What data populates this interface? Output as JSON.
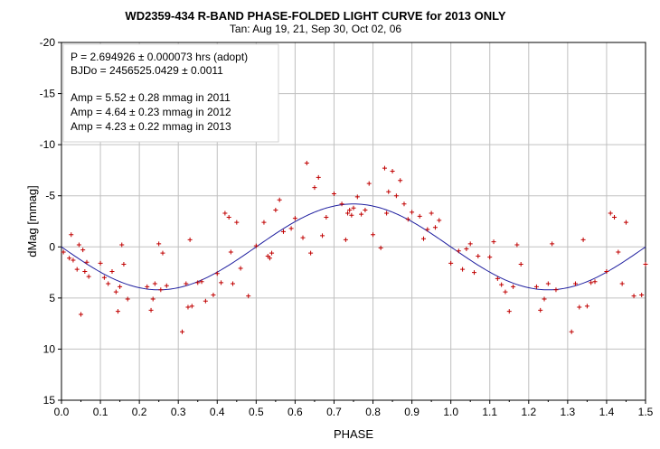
{
  "chart_data": {
    "type": "scatter",
    "title": "WD2359-434  R-BAND PHASE-FOLDED LIGHT CURVE for 2013 ONLY",
    "subtitle": "Tan: Aug 19, 21, Sep 30, Oct 02, 06",
    "xlabel": "PHASE",
    "ylabel": "dMag [mmag]",
    "xlim": [
      0.0,
      1.5
    ],
    "ylim": [
      15,
      -20
    ],
    "x_ticks": [
      "0.0",
      "0.1",
      "0.2",
      "0.3",
      "0.4",
      "0.5",
      "0.6",
      "0.7",
      "0.8",
      "0.9",
      "1.0",
      "1.1",
      "1.2",
      "1.3",
      "1.4",
      "1.5"
    ],
    "y_ticks": [
      "-20",
      "-15",
      "-10",
      "-5",
      "0",
      "5",
      "10",
      "15"
    ],
    "y_inverted": true,
    "grid": true,
    "annotations": [
      "P = 2.694926  ± 0.000073  hrs (adopt)",
      "BJDo = 2456525.0429  ± 0.0011",
      "",
      "Amp = 5.52 ± 0.28 mmag in 2011",
      "Amp = 4.64 ± 0.23 mmag in 2012",
      "Amp = 4.23 ± 0.22 mmag in 2013"
    ],
    "colors": {
      "points": "#c00000",
      "fit": "#2020a0",
      "grid": "#c0c0c0"
    },
    "fit": {
      "amplitude": 4.2,
      "max_phase": 0.75,
      "period_phase": 1.0
    },
    "series": [
      {
        "type": "points",
        "x": [
          0.005,
          0.02,
          0.025,
          0.03,
          0.04,
          0.045,
          0.05,
          0.055,
          0.06,
          0.065,
          0.07,
          0.1,
          0.11,
          0.12,
          0.13,
          0.14,
          0.145,
          0.15,
          0.155,
          0.16,
          0.17,
          0.22,
          0.23,
          0.235,
          0.24,
          0.25,
          0.255,
          0.26,
          0.27,
          0.31,
          0.32,
          0.325,
          0.33,
          0.335,
          0.35,
          0.36,
          0.37,
          0.39,
          0.4,
          0.41,
          0.42,
          0.43,
          0.435,
          0.44,
          0.45,
          0.46,
          0.48,
          0.5,
          0.52,
          0.53,
          0.535,
          0.54,
          0.55,
          0.56,
          0.57,
          0.59,
          0.6,
          0.62,
          0.63,
          0.64,
          0.65,
          0.66,
          0.67,
          0.68,
          0.7,
          0.72,
          0.73,
          0.735,
          0.74,
          0.745,
          0.75,
          0.76,
          0.77,
          0.78,
          0.79,
          0.8,
          0.82,
          0.83,
          0.835,
          0.84,
          0.85,
          0.86,
          0.87,
          0.88,
          0.89,
          0.9,
          0.92,
          0.93,
          0.94,
          0.95,
          0.96,
          0.97,
          1.0,
          1.02,
          1.03,
          1.04,
          1.05,
          1.06,
          1.07,
          1.1,
          1.11,
          1.12,
          1.13,
          1.14,
          1.15,
          1.16,
          1.17,
          1.18,
          1.22,
          1.23,
          1.24,
          1.25,
          1.26,
          1.27,
          1.31,
          1.32,
          1.33,
          1.34,
          1.35,
          1.36,
          1.37,
          1.4,
          1.41,
          1.42,
          1.43,
          1.44,
          1.45,
          1.47,
          1.49,
          1.5
        ],
        "y": [
          0.5,
          1.1,
          -1.2,
          1.3,
          2.2,
          -0.2,
          6.6,
          0.3,
          2.4,
          1.5,
          2.9,
          1.6,
          3.0,
          3.6,
          2.4,
          4.4,
          6.3,
          3.9,
          -0.2,
          1.7,
          5.1,
          3.9,
          6.2,
          5.1,
          3.6,
          -0.3,
          4.2,
          0.6,
          3.8,
          8.3,
          3.6,
          5.9,
          -0.7,
          5.8,
          3.5,
          3.4,
          5.3,
          4.7,
          2.6,
          3.5,
          -3.3,
          -2.9,
          0.5,
          3.6,
          -2.4,
          2.1,
          4.8,
          -0.1,
          -2.4,
          0.9,
          1.1,
          0.6,
          -3.6,
          -4.6,
          -1.5,
          -1.8,
          -2.8,
          -0.9,
          -8.2,
          0.6,
          -5.8,
          -6.8,
          -1.1,
          -2.9,
          -5.2,
          -4.2,
          -0.7,
          -3.3,
          -3.6,
          -3.1,
          -3.8,
          -4.9,
          -3.2,
          -3.6,
          -6.2,
          -1.2,
          0.1,
          -7.7,
          -3.3,
          -5.4,
          -7.4,
          -5.0,
          -6.5,
          -4.2,
          -2.7,
          -3.4,
          -3.0,
          -0.8,
          -1.7,
          -3.3,
          -1.9,
          -2.6,
          1.6,
          0.4,
          2.2,
          0.2,
          -0.3,
          2.5,
          0.9,
          1.0,
          -0.5,
          3.1,
          3.7,
          4.4,
          6.3,
          3.9,
          -0.2,
          1.7,
          3.9,
          6.2,
          5.1,
          3.6,
          -0.3,
          4.2,
          8.3,
          3.6,
          5.9,
          -0.7,
          5.8,
          3.5,
          3.4,
          2.4,
          -3.3,
          -2.9,
          0.5,
          3.6,
          -2.4,
          4.8,
          4.7,
          1.7
        ]
      },
      {
        "type": "fit_line",
        "name": ""
      }
    ]
  }
}
